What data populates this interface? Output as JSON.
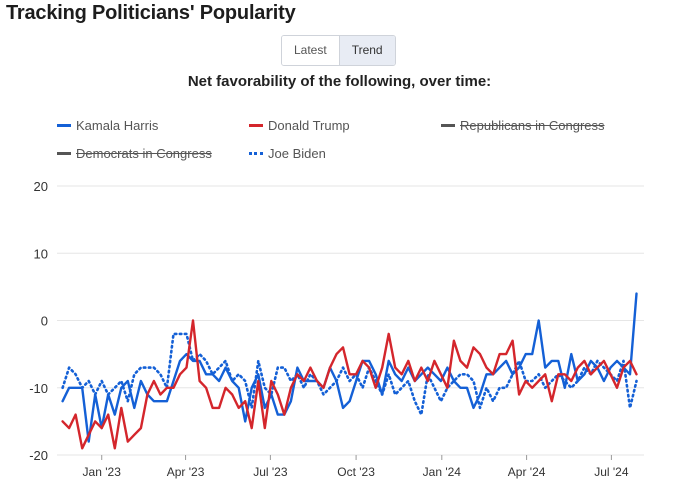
{
  "title": "Tracking Politicians' Popularity",
  "tabs": [
    {
      "label": "Latest",
      "active": false
    },
    {
      "label": "Trend",
      "active": true
    }
  ],
  "colors": {
    "harris": "#1460d6",
    "trump": "#d4262c",
    "hidden": "#555555",
    "biden": "#1460d6",
    "grid": "#e6e6e6"
  },
  "chart_data": {
    "type": "line",
    "title": "Net favorability of the following, over time:",
    "ylim": [
      -20,
      20
    ],
    "yticks": [
      20,
      10,
      0,
      -10,
      -20
    ],
    "xlim": [
      "2022-11-14",
      "2024-08-05"
    ],
    "xticks": [
      {
        "date": "2023-01-01",
        "label": "Jan '23"
      },
      {
        "date": "2023-04-01",
        "label": "Apr '23"
      },
      {
        "date": "2023-07-01",
        "label": "Jul '23"
      },
      {
        "date": "2023-10-01",
        "label": "Oct '23"
      },
      {
        "date": "2024-01-01",
        "label": "Jan '24"
      },
      {
        "date": "2024-04-01",
        "label": "Apr '24"
      },
      {
        "date": "2024-07-01",
        "label": "Jul '24"
      }
    ],
    "legend": [
      {
        "name": "Kamala Harris",
        "style": "solid",
        "color": "#1460d6",
        "hidden": false
      },
      {
        "name": "Donald Trump",
        "style": "solid",
        "color": "#d4262c",
        "hidden": false
      },
      {
        "name": "Republicans in Congress",
        "style": "solid",
        "color": "#555555",
        "hidden": true
      },
      {
        "name": "Democrats in Congress",
        "style": "solid",
        "color": "#555555",
        "hidden": true
      },
      {
        "name": "Joe Biden",
        "style": "dotted",
        "color": "#1460d6",
        "hidden": false
      }
    ],
    "series": [
      {
        "name": "Kamala Harris",
        "x": [
          "2022-11-20",
          "2022-11-27",
          "2022-12-04",
          "2022-12-11",
          "2022-12-18",
          "2022-12-25",
          "2023-01-01",
          "2023-01-08",
          "2023-01-15",
          "2023-01-22",
          "2023-01-29",
          "2023-02-05",
          "2023-02-12",
          "2023-02-19",
          "2023-02-26",
          "2023-03-05",
          "2023-03-12",
          "2023-03-19",
          "2023-03-26",
          "2023-04-02",
          "2023-04-09",
          "2023-04-16",
          "2023-04-23",
          "2023-04-30",
          "2023-05-07",
          "2023-05-14",
          "2023-05-21",
          "2023-05-28",
          "2023-06-04",
          "2023-06-11",
          "2023-06-18",
          "2023-06-25",
          "2023-07-02",
          "2023-07-09",
          "2023-07-16",
          "2023-07-23",
          "2023-07-30",
          "2023-08-06",
          "2023-08-13",
          "2023-08-20",
          "2023-08-27",
          "2023-09-03",
          "2023-09-10",
          "2023-09-17",
          "2023-09-24",
          "2023-10-01",
          "2023-10-08",
          "2023-10-15",
          "2023-10-22",
          "2023-10-29",
          "2023-11-05",
          "2023-11-12",
          "2023-11-19",
          "2023-11-26",
          "2023-12-03",
          "2023-12-10",
          "2023-12-17",
          "2023-12-24",
          "2023-12-31",
          "2024-01-07",
          "2024-01-14",
          "2024-01-21",
          "2024-01-28",
          "2024-02-04",
          "2024-02-11",
          "2024-02-18",
          "2024-02-25",
          "2024-03-03",
          "2024-03-10",
          "2024-03-17",
          "2024-03-24",
          "2024-03-31",
          "2024-04-07",
          "2024-04-14",
          "2024-04-21",
          "2024-04-28",
          "2024-05-05",
          "2024-05-12",
          "2024-05-19",
          "2024-05-26",
          "2024-06-02",
          "2024-06-09",
          "2024-06-16",
          "2024-06-23",
          "2024-06-30",
          "2024-07-07",
          "2024-07-14",
          "2024-07-21",
          "2024-07-28"
        ],
        "y": [
          -12,
          -10,
          -10,
          -10,
          -18,
          -11,
          -16,
          -11,
          -14,
          -10,
          -9,
          -13,
          -9,
          -11,
          -12,
          -12,
          -12,
          -9,
          -6,
          -5,
          -6,
          -6,
          -8,
          -8,
          -9,
          -7,
          -9,
          -10,
          -15,
          -10,
          -8,
          -13,
          -11,
          -14,
          -14,
          -12,
          -7,
          -9,
          -9,
          -9,
          -10,
          -7,
          -9,
          -13,
          -12,
          -9,
          -6,
          -6,
          -8,
          -11,
          -6,
          -8,
          -9,
          -7,
          -9,
          -8,
          -7,
          -8,
          -9,
          -7,
          -9,
          -10,
          -10,
          -13,
          -11,
          -8,
          -8,
          -7,
          -6,
          -8,
          -7,
          -5,
          -5,
          0,
          -7,
          -6,
          -6,
          -10,
          -5,
          -9,
          -8,
          -6,
          -7,
          -9,
          -7,
          -6,
          -7,
          -8,
          4
        ],
        "color": "#1460d6",
        "style": "solid"
      },
      {
        "name": "Donald Trump",
        "x": [
          "2022-11-20",
          "2022-11-27",
          "2022-12-04",
          "2022-12-11",
          "2022-12-18",
          "2022-12-25",
          "2023-01-01",
          "2023-01-08",
          "2023-01-15",
          "2023-01-22",
          "2023-01-29",
          "2023-02-05",
          "2023-02-12",
          "2023-02-19",
          "2023-02-26",
          "2023-03-05",
          "2023-03-12",
          "2023-03-19",
          "2023-03-26",
          "2023-04-02",
          "2023-04-09",
          "2023-04-16",
          "2023-04-23",
          "2023-04-30",
          "2023-05-07",
          "2023-05-14",
          "2023-05-21",
          "2023-05-28",
          "2023-06-04",
          "2023-06-11",
          "2023-06-18",
          "2023-06-25",
          "2023-07-02",
          "2023-07-09",
          "2023-07-16",
          "2023-07-23",
          "2023-07-30",
          "2023-08-06",
          "2023-08-13",
          "2023-08-20",
          "2023-08-27",
          "2023-09-03",
          "2023-09-10",
          "2023-09-17",
          "2023-09-24",
          "2023-10-01",
          "2023-10-08",
          "2023-10-15",
          "2023-10-22",
          "2023-10-29",
          "2023-11-05",
          "2023-11-12",
          "2023-11-19",
          "2023-11-26",
          "2023-12-03",
          "2023-12-10",
          "2023-12-17",
          "2023-12-24",
          "2023-12-31",
          "2024-01-07",
          "2024-01-14",
          "2024-01-21",
          "2024-01-28",
          "2024-02-04",
          "2024-02-11",
          "2024-02-18",
          "2024-02-25",
          "2024-03-03",
          "2024-03-10",
          "2024-03-17",
          "2024-03-24",
          "2024-03-31",
          "2024-04-07",
          "2024-04-14",
          "2024-04-21",
          "2024-04-28",
          "2024-05-05",
          "2024-05-12",
          "2024-05-19",
          "2024-05-26",
          "2024-06-02",
          "2024-06-09",
          "2024-06-16",
          "2024-06-23",
          "2024-06-30",
          "2024-07-07",
          "2024-07-14",
          "2024-07-21",
          "2024-07-28"
        ],
        "y": [
          -15,
          -16,
          -14,
          -19,
          -17,
          -15,
          -16,
          -14,
          -19,
          -13,
          -18,
          -17,
          -16,
          -11,
          -9,
          -11,
          -10,
          -10,
          -8,
          -7,
          0,
          -9,
          -10,
          -13,
          -13,
          -10,
          -11,
          -13,
          -12,
          -16,
          -9,
          -16,
          -9,
          -11,
          -14,
          -10,
          -8,
          -9,
          -7,
          -9,
          -10,
          -7,
          -5,
          -4,
          -8,
          -8,
          -6,
          -7,
          -10,
          -7,
          -2,
          -7,
          -8,
          -6,
          -9,
          -7,
          -9,
          -6,
          -8,
          -10,
          -3,
          -6,
          -7,
          -4,
          -5,
          -7,
          -8,
          -5,
          -5,
          -3,
          -11,
          -9,
          -10,
          -9,
          -8,
          -12,
          -8,
          -8,
          -9,
          -7,
          -6,
          -8,
          -7,
          -6,
          -8,
          -10,
          -7,
          -6,
          -8
        ],
        "color": "#d4262c",
        "style": "solid"
      },
      {
        "name": "Joe Biden",
        "x": [
          "2022-11-20",
          "2022-11-27",
          "2022-12-04",
          "2022-12-11",
          "2022-12-18",
          "2022-12-25",
          "2023-01-01",
          "2023-01-08",
          "2023-01-15",
          "2023-01-22",
          "2023-01-29",
          "2023-02-05",
          "2023-02-12",
          "2023-02-19",
          "2023-02-26",
          "2023-03-05",
          "2023-03-12",
          "2023-03-19",
          "2023-03-26",
          "2023-04-02",
          "2023-04-09",
          "2023-04-16",
          "2023-04-23",
          "2023-04-30",
          "2023-05-07",
          "2023-05-14",
          "2023-05-21",
          "2023-05-28",
          "2023-06-04",
          "2023-06-11",
          "2023-06-18",
          "2023-06-25",
          "2023-07-02",
          "2023-07-09",
          "2023-07-16",
          "2023-07-23",
          "2023-07-30",
          "2023-08-06",
          "2023-08-13",
          "2023-08-20",
          "2023-08-27",
          "2023-09-03",
          "2023-09-10",
          "2023-09-17",
          "2023-09-24",
          "2023-10-01",
          "2023-10-08",
          "2023-10-15",
          "2023-10-22",
          "2023-10-29",
          "2023-11-05",
          "2023-11-12",
          "2023-11-19",
          "2023-11-26",
          "2023-12-03",
          "2023-12-10",
          "2023-12-17",
          "2023-12-24",
          "2023-12-31",
          "2024-01-07",
          "2024-01-14",
          "2024-01-21",
          "2024-01-28",
          "2024-02-04",
          "2024-02-11",
          "2024-02-18",
          "2024-02-25",
          "2024-03-03",
          "2024-03-10",
          "2024-03-17",
          "2024-03-24",
          "2024-03-31",
          "2024-04-07",
          "2024-04-14",
          "2024-04-21",
          "2024-04-28",
          "2024-05-05",
          "2024-05-12",
          "2024-05-19",
          "2024-05-26",
          "2024-06-02",
          "2024-06-09",
          "2024-06-16",
          "2024-06-23",
          "2024-06-30",
          "2024-07-07",
          "2024-07-14",
          "2024-07-21",
          "2024-07-28"
        ],
        "y": [
          -10,
          -7,
          -8,
          -10,
          -9,
          -11,
          -9,
          -11,
          -10,
          -9,
          -12,
          -8,
          -7,
          -7,
          -7,
          -8,
          -10,
          -2,
          -2,
          -2,
          -6,
          -5,
          -6,
          -8,
          -7,
          -6,
          -9,
          -8,
          -9,
          -13,
          -6,
          -10,
          -11,
          -7,
          -7,
          -9,
          -8,
          -10,
          -8,
          -9,
          -11,
          -10,
          -9,
          -7,
          -9,
          -8,
          -10,
          -7,
          -9,
          -11,
          -8,
          -11,
          -10,
          -9,
          -12,
          -14,
          -8,
          -10,
          -12,
          -10,
          -9,
          -8,
          -8,
          -9,
          -13,
          -10,
          -12,
          -10,
          -10,
          -8,
          -6,
          -9,
          -9,
          -8,
          -10,
          -9,
          -8,
          -9,
          -10,
          -9,
          -7,
          -8,
          -6,
          -7,
          -8,
          -9,
          -6,
          -13,
          -9
        ],
        "color": "#1460d6",
        "style": "dotted"
      }
    ]
  }
}
